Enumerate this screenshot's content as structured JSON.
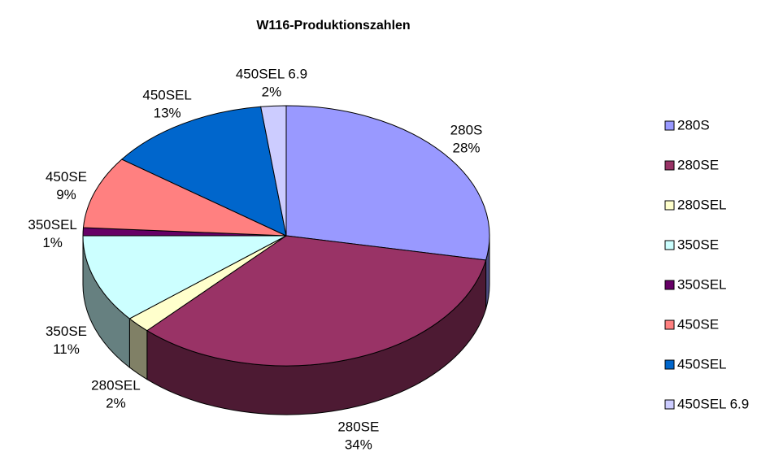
{
  "chart_data": {
    "type": "pie3d",
    "title": "W116-Produktionszahlen",
    "categories": [
      "280S",
      "280SE",
      "280SEL",
      "350SE",
      "350SEL",
      "450SE",
      "450SEL",
      "450SEL 6.9"
    ],
    "values": [
      28,
      34,
      2,
      11,
      1,
      9,
      13,
      2
    ],
    "value_labels": [
      "28%",
      "34%",
      "2%",
      "11%",
      "1%",
      "9%",
      "13%",
      "2%"
    ],
    "colors": [
      "#9999ff",
      "#993366",
      "#ffffcc",
      "#ccffff",
      "#660066",
      "#ff8080",
      "#0066cc",
      "#ccccff"
    ],
    "legend": "right"
  }
}
